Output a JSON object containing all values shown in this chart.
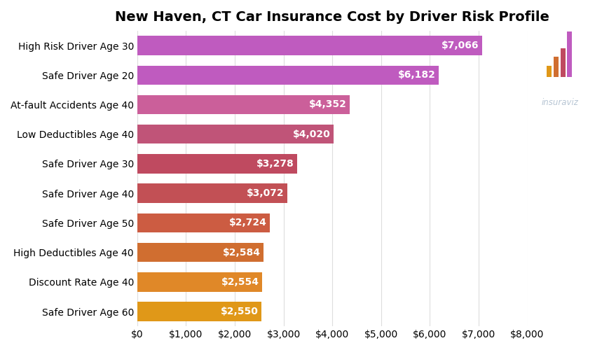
{
  "title": "New Haven, CT Car Insurance Cost by Driver Risk Profile",
  "categories": [
    "High Risk Driver Age 30",
    "Safe Driver Age 20",
    "At-fault Accidents Age 40",
    "Low Deductibles Age 40",
    "Safe Driver Age 30",
    "Safe Driver Age 40",
    "Safe Driver Age 50",
    "High Deductibles Age 40",
    "Discount Rate Age 40",
    "Safe Driver Age 60"
  ],
  "values": [
    7066,
    6182,
    4352,
    4020,
    3278,
    3072,
    2724,
    2584,
    2554,
    2550
  ],
  "bar_colors": [
    "#bf5bbf",
    "#bf5bbf",
    "#cb5f9a",
    "#c05478",
    "#bf4a60",
    "#c25055",
    "#cc5c42",
    "#d06e30",
    "#e08828",
    "#e09818"
  ],
  "xlim": [
    0,
    8000
  ],
  "xticks": [
    0,
    1000,
    2000,
    3000,
    4000,
    5000,
    6000,
    7000,
    8000
  ],
  "background_color": "#ffffff",
  "grid_color": "#dddddd",
  "label_color": "#ffffff",
  "title_fontsize": 14,
  "tick_fontsize": 10,
  "bar_label_fontsize": 10,
  "watermark_text": "insuraviz",
  "watermark_color": "#aabbcc"
}
